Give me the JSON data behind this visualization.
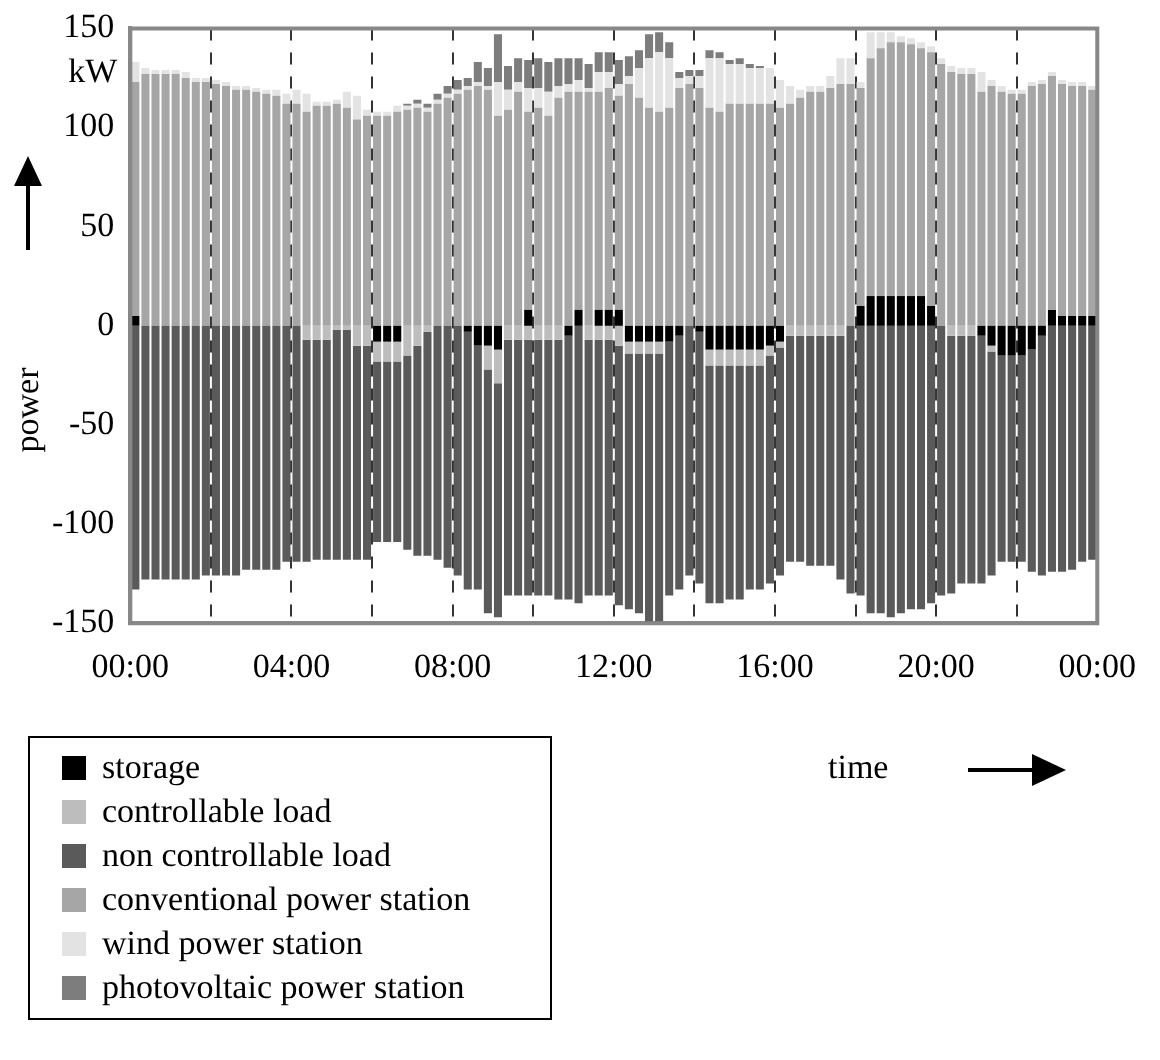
{
  "chart_data": {
    "type": "bar",
    "stacked": true,
    "xlabel": "time",
    "ylabel": "power",
    "annotations": [
      "kW"
    ],
    "x": [
      0.125,
      0.375,
      0.625,
      0.875,
      1.125,
      1.375,
      1.625,
      1.875,
      2.125,
      2.375,
      2.625,
      2.875,
      3.125,
      3.375,
      3.625,
      3.875,
      4.125,
      4.375,
      4.625,
      4.875,
      5.125,
      5.375,
      5.625,
      5.875,
      6.125,
      6.375,
      6.625,
      6.875,
      7.125,
      7.375,
      7.625,
      7.875,
      8.125,
      8.375,
      8.625,
      8.875,
      9.125,
      9.375,
      9.625,
      9.875,
      10.125,
      10.375,
      10.625,
      10.875,
      11.125,
      11.375,
      11.625,
      11.875,
      12.125,
      12.375,
      12.625,
      12.875,
      13.125,
      13.375,
      13.625,
      13.875,
      14.125,
      14.375,
      14.625,
      14.875,
      15.125,
      15.375,
      15.625,
      15.875,
      16.125,
      16.375,
      16.625,
      16.875,
      17.125,
      17.375,
      17.625,
      17.875,
      18.125,
      18.375,
      18.625,
      18.875,
      19.125,
      19.375,
      19.625,
      19.875,
      20.125,
      20.375,
      20.625,
      20.875,
      21.125,
      21.375,
      21.625,
      21.875,
      22.125,
      22.375,
      22.625,
      22.875,
      23.125,
      23.375,
      23.625,
      23.875
    ],
    "xlim": [
      0,
      24
    ],
    "xticks": [
      {
        "value": 0,
        "label": "00:00"
      },
      {
        "value": 2,
        "label": null
      },
      {
        "value": 4,
        "label": "04:00"
      },
      {
        "value": 6,
        "label": null
      },
      {
        "value": 8,
        "label": "08:00"
      },
      {
        "value": 10,
        "label": null
      },
      {
        "value": 12,
        "label": "12:00"
      },
      {
        "value": 14,
        "label": null
      },
      {
        "value": 16,
        "label": "16:00"
      },
      {
        "value": 18,
        "label": null
      },
      {
        "value": 20,
        "label": "20:00"
      },
      {
        "value": 22,
        "label": null
      },
      {
        "value": 24,
        "label": "00:00"
      }
    ],
    "ylim": [
      -150,
      150
    ],
    "yticks": [
      -150,
      -100,
      -50,
      0,
      50,
      100,
      150
    ],
    "grid": "x",
    "legend": "bottom left",
    "series": [
      {
        "name": "storage",
        "color": "#000000",
        "values": [
          5,
          0,
          0,
          0,
          0,
          0,
          0,
          0,
          0,
          0,
          0,
          0,
          0,
          0,
          0,
          0,
          0,
          0,
          0,
          0,
          0,
          0,
          0,
          0,
          -8,
          -8,
          -8,
          0,
          0,
          0,
          0,
          0,
          0,
          -3,
          -10,
          -10,
          -12,
          0,
          0,
          8,
          0,
          0,
          0,
          -5,
          8,
          0,
          8,
          8,
          8,
          -8,
          -8,
          -8,
          -8,
          -8,
          -5,
          0,
          -3,
          -12,
          -12,
          -12,
          -12,
          -12,
          -12,
          -10,
          -8,
          0,
          0,
          0,
          0,
          0,
          0,
          0,
          10,
          15,
          15,
          15,
          15,
          15,
          15,
          10,
          0,
          0,
          0,
          0,
          -5,
          -10,
          -15,
          -15,
          -15,
          -12,
          -5,
          8,
          5,
          5,
          5,
          5
        ]
      },
      {
        "name": "controllable load",
        "color": "#bdbdbd",
        "values": [
          0,
          0,
          0,
          0,
          0,
          0,
          0,
          0,
          0,
          0,
          0,
          0,
          0,
          0,
          0,
          0,
          0,
          -7,
          -7,
          -7,
          -2,
          -2,
          -10,
          -10,
          -10,
          -10,
          -10,
          -15,
          -10,
          -3,
          0,
          0,
          0,
          0,
          0,
          -12,
          -17,
          -7,
          -7,
          -7,
          -7,
          -7,
          -7,
          0,
          0,
          -7,
          -7,
          -7,
          -10,
          -6,
          -6,
          -6,
          -6,
          0,
          0,
          0,
          0,
          -8,
          -8,
          -8,
          -8,
          -8,
          -8,
          -5,
          -3,
          -5,
          -5,
          -5,
          -5,
          -5,
          -5,
          0,
          0,
          0,
          0,
          0,
          0,
          0,
          0,
          0,
          0,
          -5,
          -5,
          -5,
          0,
          -3,
          0,
          0,
          0,
          0,
          0,
          0,
          0,
          0,
          0,
          0
        ]
      },
      {
        "name": "non controllable load",
        "color": "#5a5a5a",
        "values": [
          -133,
          -128,
          -128,
          -128,
          -128,
          -128,
          -128,
          -126,
          -126,
          -126,
          -126,
          -123,
          -123,
          -123,
          -123,
          -119,
          -119,
          -112,
          -111,
          -111,
          -116,
          -116,
          -108,
          -108,
          -91,
          -91,
          -91,
          -98,
          -106,
          -113,
          -118,
          -122,
          -126,
          -130,
          -123,
          -123,
          -118,
          -129,
          -129,
          -129,
          -129,
          -129,
          -131,
          -133,
          -140,
          -129,
          -129,
          -129,
          -131,
          -129,
          -131,
          -136,
          -136,
          -128,
          -128,
          -126,
          -127,
          -120,
          -120,
          -118,
          -118,
          -113,
          -113,
          -115,
          -115,
          -114,
          -114,
          -116,
          -116,
          -116,
          -123,
          -135,
          -136,
          -145,
          -145,
          -147,
          -145,
          -143,
          -143,
          -140,
          -136,
          -130,
          -125,
          -125,
          -125,
          -113,
          -104,
          -104,
          -104,
          -112,
          -121,
          -124,
          -124,
          -123,
          -119,
          -118
        ]
      },
      {
        "name": "conventional power station",
        "color": "#a6a6a6",
        "values": [
          118,
          127,
          127,
          127,
          127,
          125,
          123,
          123,
          122,
          121,
          119,
          119,
          118,
          117,
          116,
          112,
          112,
          108,
          111,
          111,
          112,
          110,
          104,
          106,
          106,
          106,
          108,
          109,
          110,
          108,
          112,
          115,
          117,
          119,
          121,
          119,
          106,
          109,
          118,
          100,
          110,
          106,
          115,
          118,
          110,
          118,
          110,
          112,
          108,
          122,
          115,
          110,
          108,
          110,
          120,
          122,
          120,
          110,
          108,
          112,
          112,
          112,
          112,
          112,
          110,
          112,
          115,
          118,
          118,
          120,
          122,
          122,
          110,
          120,
          125,
          128,
          128,
          127,
          125,
          128,
          132,
          128,
          127,
          127,
          118,
          121,
          118,
          117,
          117,
          121,
          122,
          118,
          117,
          116,
          116,
          114
        ]
      },
      {
        "name": "wind power station",
        "color": "#e3e3e3",
        "values": [
          10,
          3,
          2,
          2,
          2,
          3,
          2,
          2,
          2,
          2,
          2,
          2,
          2,
          2,
          3,
          5,
          7,
          9,
          2,
          2,
          2,
          8,
          12,
          3,
          2,
          2,
          3,
          2,
          2,
          2,
          2,
          2,
          2,
          2,
          2,
          2,
          17,
          10,
          5,
          12,
          10,
          12,
          6,
          4,
          6,
          2,
          10,
          8,
          6,
          4,
          15,
          25,
          30,
          25,
          5,
          4,
          6,
          25,
          27,
          20,
          20,
          18,
          18,
          18,
          14,
          9,
          4,
          3,
          3,
          6,
          13,
          13,
          3,
          13,
          8,
          5,
          3,
          3,
          3,
          3,
          3,
          3,
          3,
          3,
          10,
          3,
          3,
          2,
          2,
          2,
          2,
          2,
          2,
          2,
          2,
          2
        ]
      },
      {
        "name": "photovoltaic power station",
        "color": "#7d7d7d",
        "values": [
          0,
          0,
          0,
          0,
          0,
          0,
          0,
          0,
          0,
          0,
          0,
          0,
          0,
          0,
          0,
          0,
          0,
          0,
          0,
          0,
          0,
          0,
          0,
          0,
          0,
          0,
          0,
          1,
          2,
          2,
          3,
          4,
          5,
          4,
          10,
          9,
          24,
          12,
          12,
          14,
          15,
          15,
          14,
          13,
          11,
          12,
          10,
          10,
          12,
          10,
          9,
          12,
          10,
          8,
          3,
          3,
          3,
          4,
          3,
          2,
          3,
          2,
          1,
          0,
          0,
          0,
          0,
          0,
          0,
          0,
          0,
          0,
          0,
          0,
          0,
          0,
          0,
          0,
          0,
          0,
          0,
          0,
          0,
          0,
          0,
          0,
          0,
          0,
          0,
          0,
          0,
          0,
          0,
          0,
          0,
          0
        ]
      }
    ]
  }
}
